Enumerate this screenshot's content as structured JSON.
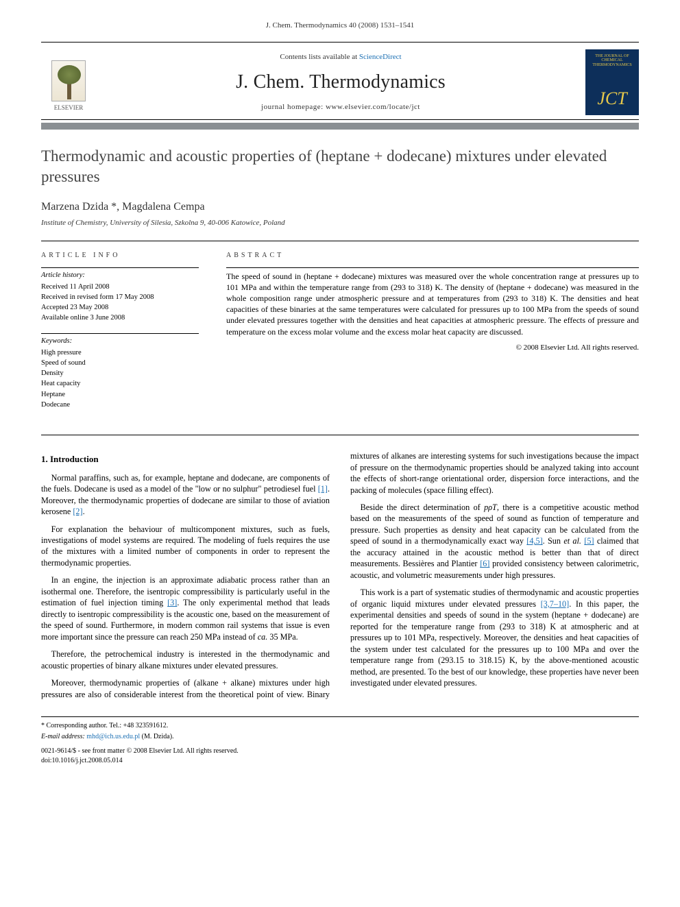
{
  "running_head": "J. Chem. Thermodynamics 40 (2008) 1531–1541",
  "masthead": {
    "publisher_name": "ELSEVIER",
    "contents_prefix": "Contents lists available at ",
    "contents_link": "ScienceDirect",
    "journal_title": "J. Chem. Thermodynamics",
    "homepage_label": "journal homepage: www.elsevier.com/locate/jct",
    "cover_title": "THE JOURNAL OF CHEMICAL THERMODYNAMICS",
    "cover_short": "JCT"
  },
  "title": "Thermodynamic and acoustic properties of (heptane + dodecane) mixtures under elevated pressures",
  "authors": "Marzena Dzida *, Magdalena Cempa",
  "affiliation": "Institute of Chemistry, University of Silesia, Szkolna 9, 40-006 Katowice, Poland",
  "article_info": {
    "label_article_info": "ARTICLE INFO",
    "history_heading": "Article history:",
    "received": "Received 11 April 2008",
    "revised": "Received in revised form 17 May 2008",
    "accepted": "Accepted 23 May 2008",
    "online": "Available online 3 June 2008",
    "keywords_heading": "Keywords:",
    "keywords": [
      "High pressure",
      "Speed of sound",
      "Density",
      "Heat capacity",
      "Heptane",
      "Dodecane"
    ]
  },
  "abstract": {
    "label_abstract": "ABSTRACT",
    "text": "The speed of sound in (heptane + dodecane) mixtures was measured over the whole concentration range at pressures up to 101 MPa and within the temperature range from (293 to 318) K. The density of (heptane + dodecane) was measured in the whole composition range under atmospheric pressure and at temperatures from (293 to 318) K. The densities and heat capacities of these binaries at the same temperatures were calculated for pressures up to 100 MPa from the speeds of sound under elevated pressures together with the densities and heat capacities at atmospheric pressure. The effects of pressure and temperature on the excess molar volume and the excess molar heat capacity are discussed.",
    "copyright": "© 2008 Elsevier Ltd. All rights reserved."
  },
  "sections": {
    "intro_heading": "1. Introduction",
    "p1a": "Normal paraffins, such as, for example, heptane and dodecane, are components of the fuels. Dodecane is used as a model of the \"low or no sulphur\" petrodiesel fuel ",
    "p1_ref1": "[1]",
    "p1b": ". Moreover, the thermodynamic properties of dodecane are similar to those of aviation kerosene ",
    "p1_ref2": "[2]",
    "p1c": ".",
    "p2": "For explanation the behaviour of multicomponent mixtures, such as fuels, investigations of model systems are required. The modeling of fuels requires the use of the mixtures with a limited number of components in order to represent the thermodynamic properties.",
    "p3a": "In an engine, the injection is an approximate adiabatic process rather than an isothermal one. Therefore, the isentropic compressibility is particularly useful in the estimation of fuel injection timing ",
    "p3_ref3": "[3]",
    "p3b": ". The only experimental method that leads directly to isentropic compressibility is the acoustic one, based on the measurement of the speed of sound. Furthermore, in modern common rail systems that issue is even more important since the pressure can reach 250 MPa instead of ",
    "p3_ca": "ca.",
    "p3c": " 35 MPa.",
    "p4": "Therefore, the petrochemical industry is interested in the thermodynamic and acoustic properties of binary alkane mixtures under elevated pressures.",
    "p5": "Moreover, thermodynamic properties of (alkane + alkane) mixtures under high pressures are also of considerable interest from the theoretical point of view. Binary mixtures of alkanes are interesting systems for such investigations because the impact of pressure on the thermodynamic properties should be analyzed taking into account the effects of short-range orientational order, dispersion force interactions, and the packing of molecules (space filling effect).",
    "p6a": "Beside the direct determination of ",
    "p6_ppT": "pρT",
    "p6b": ", there is a competitive acoustic method based on the measurements of the speed of sound as function of temperature and pressure. Such properties as density and heat capacity can be calculated from the speed of sound in a thermodynamically exact way ",
    "p6_ref45": "[4,5]",
    "p6c": ". Sun ",
    "p6_etal": "et al.",
    "p6d": " ",
    "p6_ref5": "[5]",
    "p6e": " claimed that the accuracy attained in the acoustic method is better than that of direct measurements. Bessières and Plantier ",
    "p6_ref6": "[6]",
    "p6f": " provided consistency between calorimetric, acoustic, and volumetric measurements under high pressures.",
    "p7a": "This work is a part of systematic studies of thermodynamic and acoustic properties of organic liquid mixtures under elevated pressures ",
    "p7_ref": "[3,7–10]",
    "p7b": ". In this paper, the experimental densities and speeds of sound in the system (heptane + dodecane) are reported for the temperature range from (293 to 318) K at atmospheric and at pressures up to 101 MPa, respectively. Moreover, the densities and heat capacities of the system under test calculated for the pressures up to 100 MPa and over the temperature range from (293.15 to 318.15) K, by the above-mentioned acoustic method, are presented. To the best of our knowledge, these properties have never been investigated under elevated pressures."
  },
  "footnote": {
    "corr": "* Corresponding author. Tel.: +48 323591612.",
    "email_label": "E-mail address: ",
    "email": "mhd@ich.us.edu.pl",
    "email_tail": " (M. Dzida).",
    "copyright_line": "0021-9614/$ - see front matter © 2008 Elsevier Ltd. All rights reserved.",
    "doi": "doi:10.1016/j.jct.2008.05.014"
  },
  "colors": {
    "link": "#1b6fb3",
    "bar": "#8a8f93",
    "cover_bg": "#0d2f5a",
    "cover_fg": "#e7c84a",
    "text": "#000000",
    "title_gray": "#444444"
  }
}
